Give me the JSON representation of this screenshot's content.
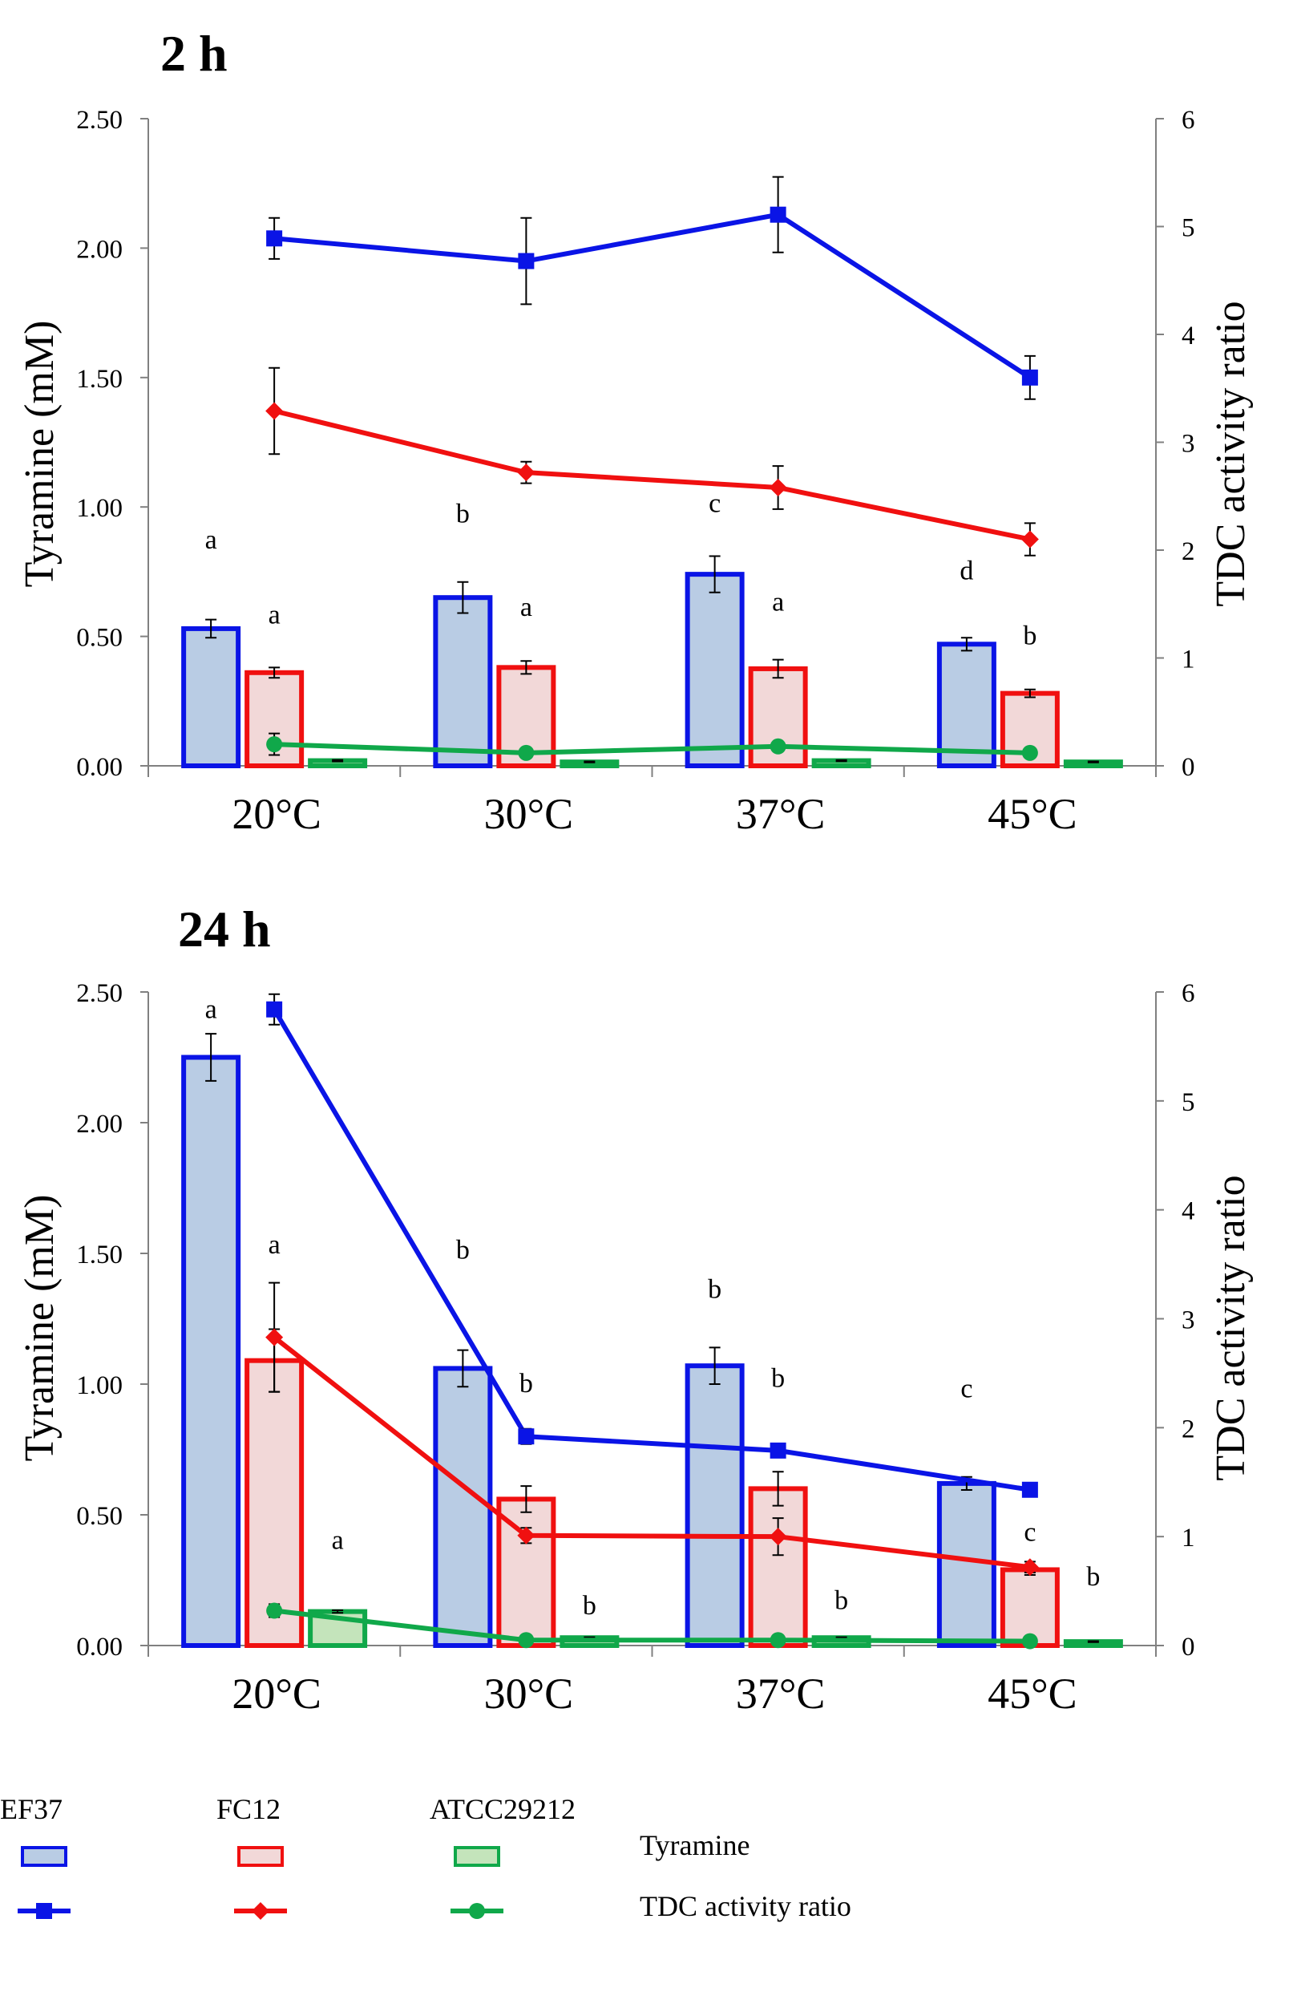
{
  "colors": {
    "EF37": {
      "line": "#0a14e6",
      "fill": "#b9cce4"
    },
    "FC12": {
      "line": "#f01010",
      "fill": "#f2d8d8"
    },
    "ATCC29212": {
      "line": "#10a84a",
      "fill": "#c4e4bb"
    },
    "axis": "#808080"
  },
  "chart_data": [
    {
      "id": "panel-2h",
      "type": "bar",
      "title": "2 h",
      "categories": [
        "20°C",
        "30°C",
        "37°C",
        "45°C"
      ],
      "ylabel": "Tyramine (mM)",
      "y2label": "TDC activity ratio",
      "ylim": [
        0,
        2.5
      ],
      "yticks": [
        "0.00",
        "0.50",
        "1.00",
        "1.50",
        "2.00",
        "2.50"
      ],
      "y2lim": [
        0,
        6
      ],
      "y2ticks": [
        "0",
        "1",
        "2",
        "3",
        "4",
        "5",
        "6"
      ],
      "bar_series": [
        {
          "name": "EF37",
          "values": [
            0.53,
            0.65,
            0.74,
            0.47
          ],
          "errors": [
            0.035,
            0.06,
            0.07,
            0.025
          ],
          "letters": [
            "a",
            "b",
            "c",
            "d"
          ],
          "letter_values": [
            0.84,
            0.94,
            0.98,
            0.72
          ]
        },
        {
          "name": "FC12",
          "values": [
            0.36,
            0.38,
            0.375,
            0.28
          ],
          "errors": [
            0.02,
            0.025,
            0.035,
            0.015
          ],
          "letters": [
            "a",
            "a",
            "a",
            "b"
          ],
          "letter_values": [
            0.55,
            0.58,
            0.6,
            0.47
          ]
        },
        {
          "name": "ATCC29212",
          "values": [
            0.02,
            0.015,
            0.02,
            0.015
          ],
          "errors": [
            0.003,
            0.002,
            0.002,
            0.002
          ],
          "letters": [
            "",
            "",
            "",
            ""
          ],
          "letter_values": [
            0,
            0,
            0,
            0
          ]
        }
      ],
      "line_series": [
        {
          "name": "EF37",
          "values": [
            4.89,
            4.68,
            5.11,
            3.6
          ],
          "errors": [
            0.19,
            0.4,
            0.35,
            0.2
          ],
          "marker": "square"
        },
        {
          "name": "FC12",
          "values": [
            3.29,
            2.72,
            2.58,
            2.1
          ],
          "errors": [
            0.4,
            0.1,
            0.2,
            0.15
          ],
          "marker": "diamond"
        },
        {
          "name": "ATCC29212",
          "values": [
            0.2,
            0.12,
            0.18,
            0.12
          ],
          "errors": [
            0.1,
            0.02,
            0.02,
            0.02
          ],
          "marker": "circle"
        }
      ]
    },
    {
      "id": "panel-24h",
      "type": "bar",
      "title": "24 h",
      "categories": [
        "20°C",
        "30°C",
        "37°C",
        "45°C"
      ],
      "ylabel": "Tyramine (mM)",
      "y2label": "TDC activity ratio",
      "ylim": [
        0,
        2.5
      ],
      "yticks": [
        "0.00",
        "0.50",
        "1.00",
        "1.50",
        "2.00",
        "2.50"
      ],
      "y2lim": [
        0,
        6
      ],
      "y2ticks": [
        "0",
        "1",
        "2",
        "3",
        "4",
        "5",
        "6"
      ],
      "bar_series": [
        {
          "name": "EF37",
          "values": [
            2.25,
            1.06,
            1.07,
            0.62
          ],
          "errors": [
            0.09,
            0.07,
            0.07,
            0.025
          ],
          "letters": [
            "a",
            "b",
            "b",
            "c"
          ],
          "letter_values": [
            2.4,
            1.48,
            1.33,
            0.95
          ]
        },
        {
          "name": "FC12",
          "values": [
            1.09,
            0.56,
            0.6,
            0.29
          ],
          "errors": [
            0.12,
            0.05,
            0.065,
            0.02
          ],
          "letters": [
            "a",
            "b",
            "b",
            "c"
          ],
          "letter_values": [
            1.5,
            0.97,
            0.99,
            0.4
          ]
        },
        {
          "name": "ATCC29212",
          "values": [
            0.13,
            0.03,
            0.03,
            0.015
          ],
          "errors": [
            0.005,
            0.002,
            0.002,
            0.002
          ],
          "letters": [
            "a",
            "b",
            "b",
            "b"
          ],
          "letter_values": [
            0.37,
            0.12,
            0.14,
            0.23
          ]
        }
      ],
      "line_series": [
        {
          "name": "EF37",
          "values": [
            5.84,
            1.92,
            1.79,
            1.43
          ],
          "errors": [
            0.14,
            0.07,
            0.04,
            0.03
          ],
          "marker": "square"
        },
        {
          "name": "FC12",
          "values": [
            2.83,
            1.01,
            1.0,
            0.72
          ],
          "errors": [
            0.5,
            0.07,
            0.17,
            0.05
          ],
          "marker": "diamond"
        },
        {
          "name": "ATCC29212",
          "values": [
            0.32,
            0.05,
            0.05,
            0.04
          ],
          "errors": [
            0.06,
            0.01,
            0.01,
            0.01
          ],
          "marker": "circle"
        }
      ]
    }
  ],
  "legend": {
    "strains": [
      "EF37",
      "FC12",
      "ATCC29212"
    ],
    "bar_label": "Tyramine",
    "line_label": "TDC activity ratio"
  }
}
